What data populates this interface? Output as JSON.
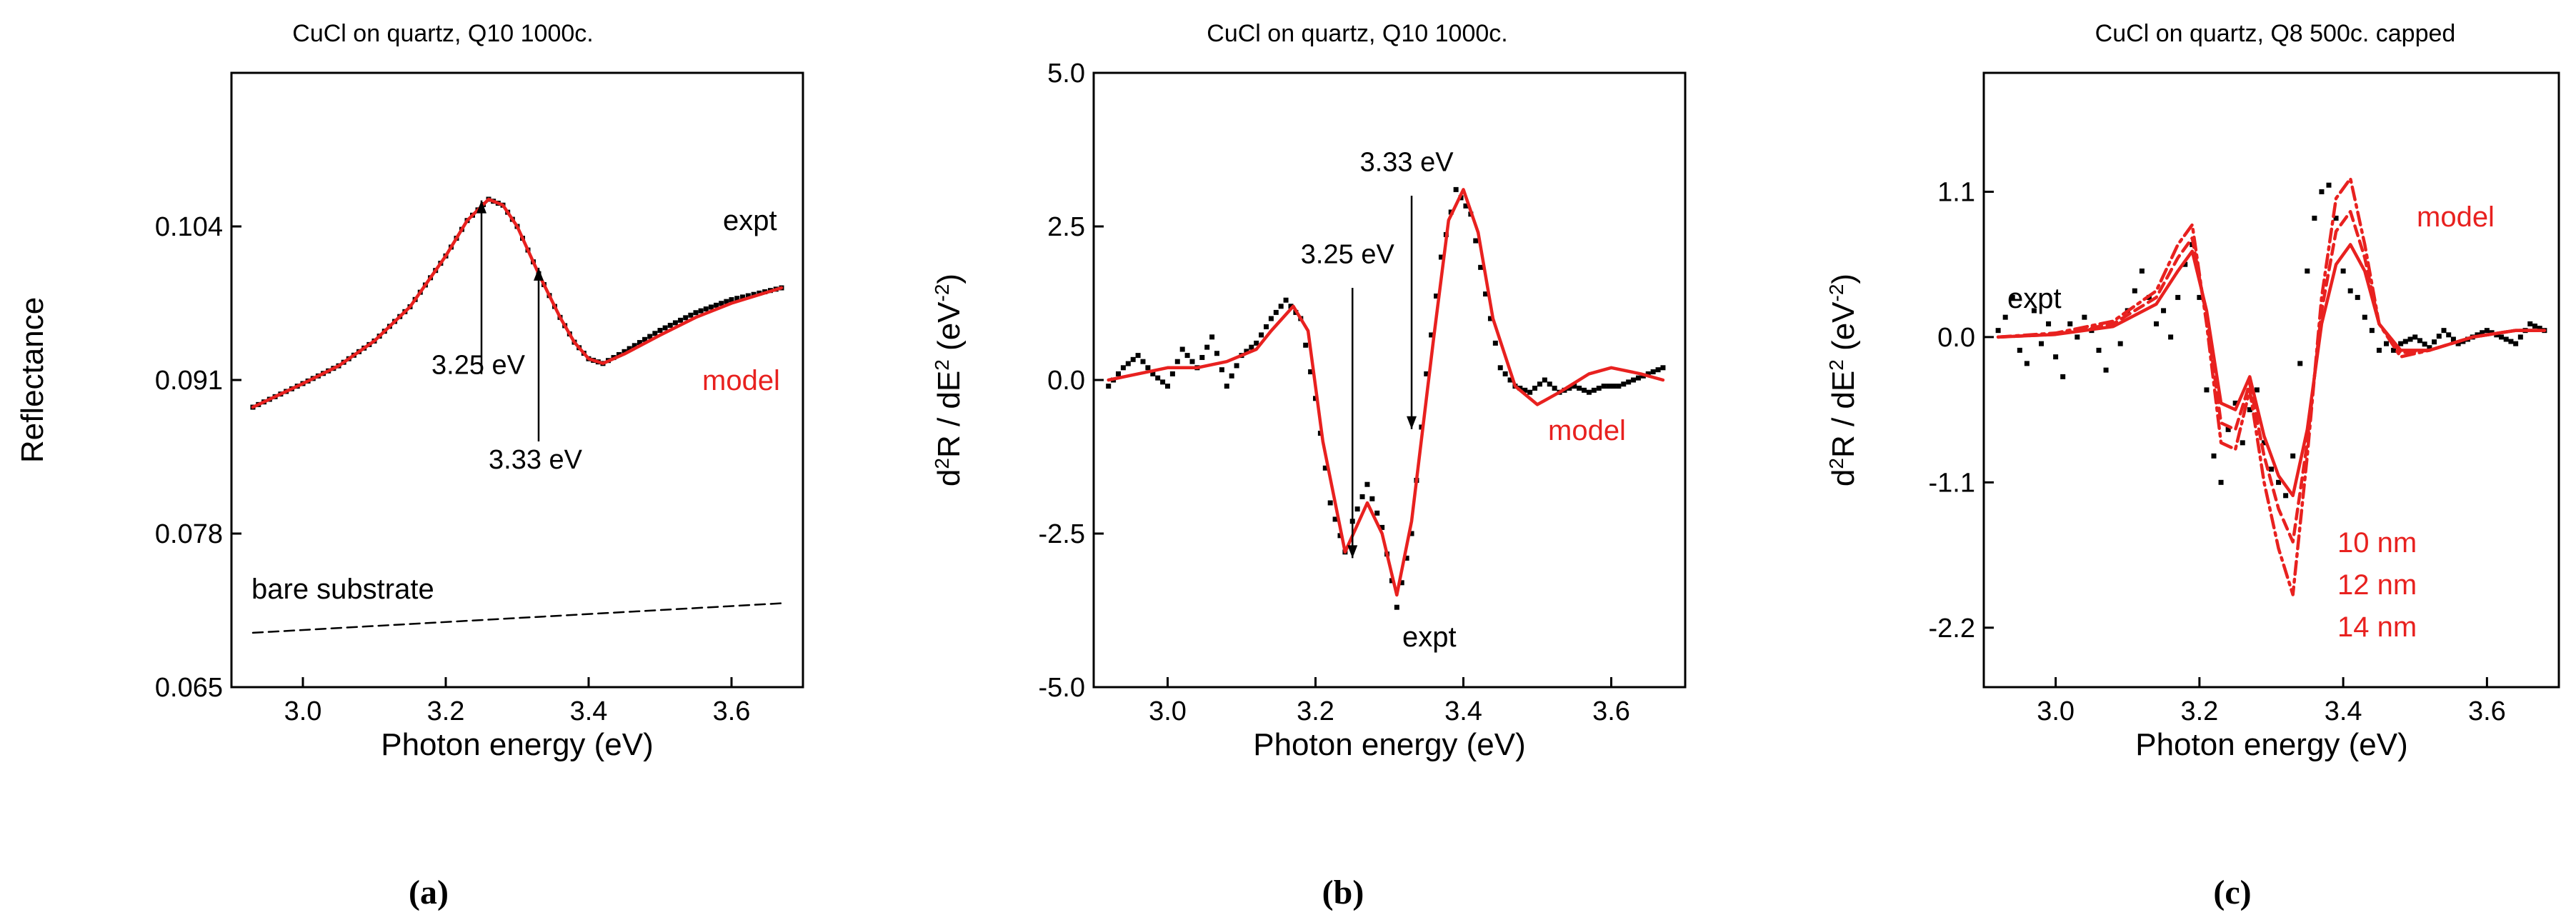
{
  "chart_data": [
    {
      "panel": "(a)",
      "type": "line",
      "title": "CuCl on quartz, Q10 1000c.",
      "xlabel": "Photon energy (eV)",
      "ylabel": "Reflectance",
      "xlim": [
        2.9,
        3.7
      ],
      "ylim": [
        0.065,
        0.117
      ],
      "xticks": [
        3.0,
        3.2,
        3.4,
        3.6
      ],
      "xtick_labels": [
        "3.0",
        "3.2",
        "3.4",
        "3.6"
      ],
      "yticks": [
        0.065,
        0.078,
        0.091,
        0.104
      ],
      "ytick_labels": [
        "0.065",
        "0.078",
        "0.091",
        "0.104"
      ],
      "series": [
        {
          "name": "expt",
          "color": "#000000",
          "style": "dots",
          "x": [
            2.93,
            3.0,
            3.05,
            3.1,
            3.15,
            3.2,
            3.23,
            3.26,
            3.28,
            3.3,
            3.33,
            3.36,
            3.38,
            3.4,
            3.42,
            3.45,
            3.5,
            3.55,
            3.6,
            3.67
          ],
          "y": [
            0.0887,
            0.0907,
            0.0922,
            0.0943,
            0.0972,
            0.1015,
            0.1045,
            0.1063,
            0.1058,
            0.104,
            0.1,
            0.0963,
            0.0942,
            0.0928,
            0.0924,
            0.0934,
            0.0952,
            0.0967,
            0.0978,
            0.0988
          ]
        },
        {
          "name": "model",
          "color": "#e8211f",
          "style": "solid",
          "x": [
            2.93,
            3.0,
            3.05,
            3.1,
            3.15,
            3.2,
            3.23,
            3.26,
            3.28,
            3.3,
            3.33,
            3.36,
            3.38,
            3.4,
            3.42,
            3.45,
            3.5,
            3.55,
            3.6,
            3.67
          ],
          "y": [
            0.0887,
            0.0907,
            0.0922,
            0.0943,
            0.0972,
            0.1015,
            0.1045,
            0.1063,
            0.1058,
            0.104,
            0.1,
            0.0963,
            0.0942,
            0.0928,
            0.0924,
            0.0932,
            0.0948,
            0.0963,
            0.0975,
            0.0988
          ]
        },
        {
          "name": "bare substrate",
          "color": "#000000",
          "style": "dashed",
          "x": [
            2.93,
            3.67
          ],
          "y": [
            0.0696,
            0.0721
          ]
        }
      ],
      "labels": {
        "expt": "expt",
        "model": "model",
        "substrate": "bare substrate"
      },
      "annotations": [
        {
          "text": "3.25 eV",
          "x": 3.25,
          "arrow_from_y": 0.0915,
          "arrow_to_y": 0.1062,
          "text_x": 3.18,
          "text_y": 0.0915
        },
        {
          "text": "3.33 eV",
          "x": 3.33,
          "arrow_from_y": 0.0858,
          "arrow_to_y": 0.1005,
          "text_x": 3.26,
          "text_y": 0.0835
        }
      ]
    },
    {
      "panel": "(b)",
      "type": "line",
      "title": "CuCl on quartz, Q10 1000c.",
      "xlabel": "Photon energy (eV)",
      "ylabel_main": "d",
      "ylabel_sup1": "2",
      "ylabel_mid": "R / dE",
      "ylabel_sup2": "2",
      "ylabel_unit": " (eV",
      "ylabel_sup3": "-2",
      "ylabel_end": ")",
      "xlim": [
        2.9,
        3.7
      ],
      "ylim": [
        -5.0,
        5.0
      ],
      "xticks": [
        3.0,
        3.2,
        3.4,
        3.6
      ],
      "xtick_labels": [
        "3.0",
        "3.2",
        "3.4",
        "3.6"
      ],
      "yticks": [
        -5.0,
        -2.5,
        0.0,
        2.5,
        5.0
      ],
      "ytick_labels": [
        "-5.0",
        "-2.5",
        "0.0",
        "2.5",
        "5.0"
      ],
      "series": [
        {
          "name": "expt",
          "color": "#000000",
          "style": "dots",
          "x": [
            2.92,
            2.94,
            2.96,
            2.98,
            3.0,
            3.02,
            3.04,
            3.06,
            3.08,
            3.1,
            3.12,
            3.14,
            3.16,
            3.18,
            3.2,
            3.22,
            3.24,
            3.25,
            3.27,
            3.29,
            3.31,
            3.33,
            3.35,
            3.37,
            3.39,
            3.41,
            3.43,
            3.45,
            3.47,
            3.49,
            3.51,
            3.53,
            3.55,
            3.57,
            3.59,
            3.61,
            3.63,
            3.65,
            3.67
          ],
          "y": [
            -0.1,
            0.2,
            0.4,
            0.1,
            -0.1,
            0.5,
            0.2,
            0.7,
            -0.1,
            0.4,
            0.6,
            1.0,
            1.3,
            1.0,
            -0.3,
            -2.0,
            -2.8,
            -2.3,
            -1.7,
            -2.4,
            -3.7,
            -2.5,
            0.1,
            2.0,
            3.1,
            2.7,
            1.4,
            0.2,
            -0.1,
            -0.2,
            0.0,
            -0.2,
            -0.1,
            -0.2,
            -0.1,
            -0.1,
            0.0,
            0.1,
            0.2
          ]
        },
        {
          "name": "model",
          "color": "#e8211f",
          "style": "solid",
          "x": [
            2.92,
            2.96,
            3.0,
            3.04,
            3.08,
            3.12,
            3.14,
            3.17,
            3.19,
            3.21,
            3.24,
            3.27,
            3.29,
            3.31,
            3.33,
            3.36,
            3.38,
            3.4,
            3.42,
            3.44,
            3.47,
            3.5,
            3.53,
            3.57,
            3.6,
            3.64,
            3.67
          ],
          "y": [
            0.0,
            0.1,
            0.2,
            0.2,
            0.3,
            0.5,
            0.8,
            1.2,
            0.8,
            -1.0,
            -2.8,
            -2.0,
            -2.5,
            -3.5,
            -2.3,
            0.7,
            2.6,
            3.1,
            2.4,
            1.0,
            -0.1,
            -0.4,
            -0.2,
            0.1,
            0.2,
            0.1,
            0.0
          ]
        }
      ],
      "labels": {
        "expt": "expt",
        "model": "model"
      },
      "annotations": [
        {
          "text": "3.25 eV",
          "x": 3.25,
          "arrow_from_y": 1.5,
          "arrow_to_y": -2.9,
          "text_x": 3.18,
          "text_y": 1.9
        },
        {
          "text": "3.33 eV",
          "x": 3.33,
          "arrow_from_y": 3.0,
          "arrow_to_y": -0.8,
          "text_x": 3.26,
          "text_y": 3.4
        }
      ]
    },
    {
      "panel": "(c)",
      "type": "line",
      "title": "CuCl on quartz, Q8 500c. capped",
      "xlabel": "Photon energy (eV)",
      "ylabel_main": "d",
      "ylabel_sup1": "2",
      "ylabel_mid": "R / dE",
      "ylabel_sup2": "2",
      "ylabel_unit": " (eV",
      "ylabel_sup3": "-2",
      "ylabel_end": ")",
      "xlim": [
        2.9,
        3.7
      ],
      "ylim": [
        -2.65,
        2.0
      ],
      "xticks": [
        3.0,
        3.2,
        3.4,
        3.6
      ],
      "xtick_labels": [
        "3.0",
        "3.2",
        "3.4",
        "3.6"
      ],
      "yticks": [
        -2.2,
        -1.1,
        0.0,
        1.1
      ],
      "ytick_labels": [
        "-2.2",
        "-1.1",
        "0.0",
        "1.1"
      ],
      "series": [
        {
          "name": "expt",
          "color": "#000000",
          "style": "dots",
          "x": [
            2.92,
            2.93,
            2.94,
            2.95,
            2.96,
            2.97,
            2.98,
            2.99,
            3.0,
            3.01,
            3.02,
            3.03,
            3.04,
            3.05,
            3.06,
            3.07,
            3.08,
            3.09,
            3.1,
            3.11,
            3.12,
            3.13,
            3.14,
            3.15,
            3.16,
            3.17,
            3.18,
            3.19,
            3.2,
            3.21,
            3.22,
            3.23,
            3.24,
            3.25,
            3.26,
            3.27,
            3.28,
            3.29,
            3.3,
            3.31,
            3.32,
            3.33,
            3.34,
            3.35,
            3.36,
            3.37,
            3.38,
            3.39,
            3.4,
            3.41,
            3.42,
            3.43,
            3.44,
            3.45,
            3.46,
            3.47,
            3.48,
            3.5,
            3.52,
            3.54,
            3.56,
            3.58,
            3.6,
            3.62,
            3.64,
            3.66,
            3.68
          ],
          "y": [
            0.05,
            0.15,
            0.3,
            -0.1,
            -0.2,
            0.2,
            -0.05,
            0.1,
            -0.15,
            -0.3,
            0.1,
            0.0,
            0.15,
            0.05,
            -0.1,
            -0.25,
            0.1,
            -0.05,
            0.2,
            0.35,
            0.5,
            0.3,
            0.1,
            0.2,
            0.0,
            0.3,
            0.55,
            0.7,
            0.3,
            -0.4,
            -0.9,
            -1.1,
            -0.7,
            -0.5,
            -0.8,
            -0.55,
            -0.4,
            -0.8,
            -1.0,
            -1.1,
            -1.2,
            -0.9,
            -0.2,
            0.5,
            0.9,
            1.1,
            1.15,
            0.9,
            0.5,
            0.35,
            0.3,
            0.15,
            0.05,
            -0.1,
            -0.05,
            -0.1,
            -0.05,
            0.0,
            -0.08,
            0.05,
            -0.05,
            0.0,
            0.05,
            0.0,
            -0.05,
            0.1,
            0.05
          ]
        },
        {
          "name": "10 nm",
          "color": "#e8211f",
          "style": "solid",
          "x": [
            2.92,
            3.0,
            3.08,
            3.14,
            3.17,
            3.19,
            3.21,
            3.23,
            3.25,
            3.27,
            3.29,
            3.31,
            3.33,
            3.35,
            3.37,
            3.39,
            3.41,
            3.43,
            3.45,
            3.48,
            3.52,
            3.58,
            3.64,
            3.68
          ],
          "y": [
            0.0,
            0.02,
            0.08,
            0.25,
            0.5,
            0.65,
            0.2,
            -0.5,
            -0.55,
            -0.3,
            -0.75,
            -1.05,
            -1.2,
            -0.7,
            0.1,
            0.55,
            0.7,
            0.5,
            0.1,
            -0.1,
            -0.1,
            0.0,
            0.05,
            0.05
          ]
        },
        {
          "name": "12 nm",
          "color": "#e8211f",
          "style": "dashed",
          "x": [
            2.92,
            3.0,
            3.08,
            3.14,
            3.17,
            3.19,
            3.21,
            3.23,
            3.25,
            3.27,
            3.29,
            3.31,
            3.33,
            3.35,
            3.37,
            3.39,
            3.41,
            3.43,
            3.45,
            3.48,
            3.52,
            3.58,
            3.64,
            3.68
          ],
          "y": [
            0.0,
            0.02,
            0.1,
            0.3,
            0.6,
            0.75,
            0.15,
            -0.65,
            -0.7,
            -0.35,
            -0.9,
            -1.3,
            -1.55,
            -0.8,
            0.2,
            0.8,
            0.95,
            0.6,
            0.1,
            -0.12,
            -0.1,
            0.0,
            0.05,
            0.05
          ]
        },
        {
          "name": "14 nm",
          "color": "#e8211f",
          "style": "dashdot",
          "x": [
            2.92,
            3.0,
            3.08,
            3.14,
            3.17,
            3.19,
            3.21,
            3.23,
            3.25,
            3.27,
            3.29,
            3.31,
            3.33,
            3.35,
            3.37,
            3.39,
            3.41,
            3.43,
            3.45,
            3.48,
            3.52,
            3.58,
            3.64,
            3.68
          ],
          "y": [
            0.0,
            0.03,
            0.12,
            0.35,
            0.7,
            0.85,
            0.1,
            -0.8,
            -0.85,
            -0.4,
            -1.1,
            -1.6,
            -1.95,
            -0.9,
            0.3,
            1.05,
            1.2,
            0.7,
            0.1,
            -0.15,
            -0.1,
            0.0,
            0.05,
            0.05
          ]
        }
      ],
      "labels": {
        "expt": "expt",
        "model": "model",
        "t1": "10 nm",
        "t2": "12 nm",
        "t3": "14 nm"
      }
    }
  ],
  "panel_letters": [
    "(a)",
    "(b)",
    "(c)"
  ],
  "colors": {
    "expt": "#000000",
    "model": "#e8211f"
  }
}
